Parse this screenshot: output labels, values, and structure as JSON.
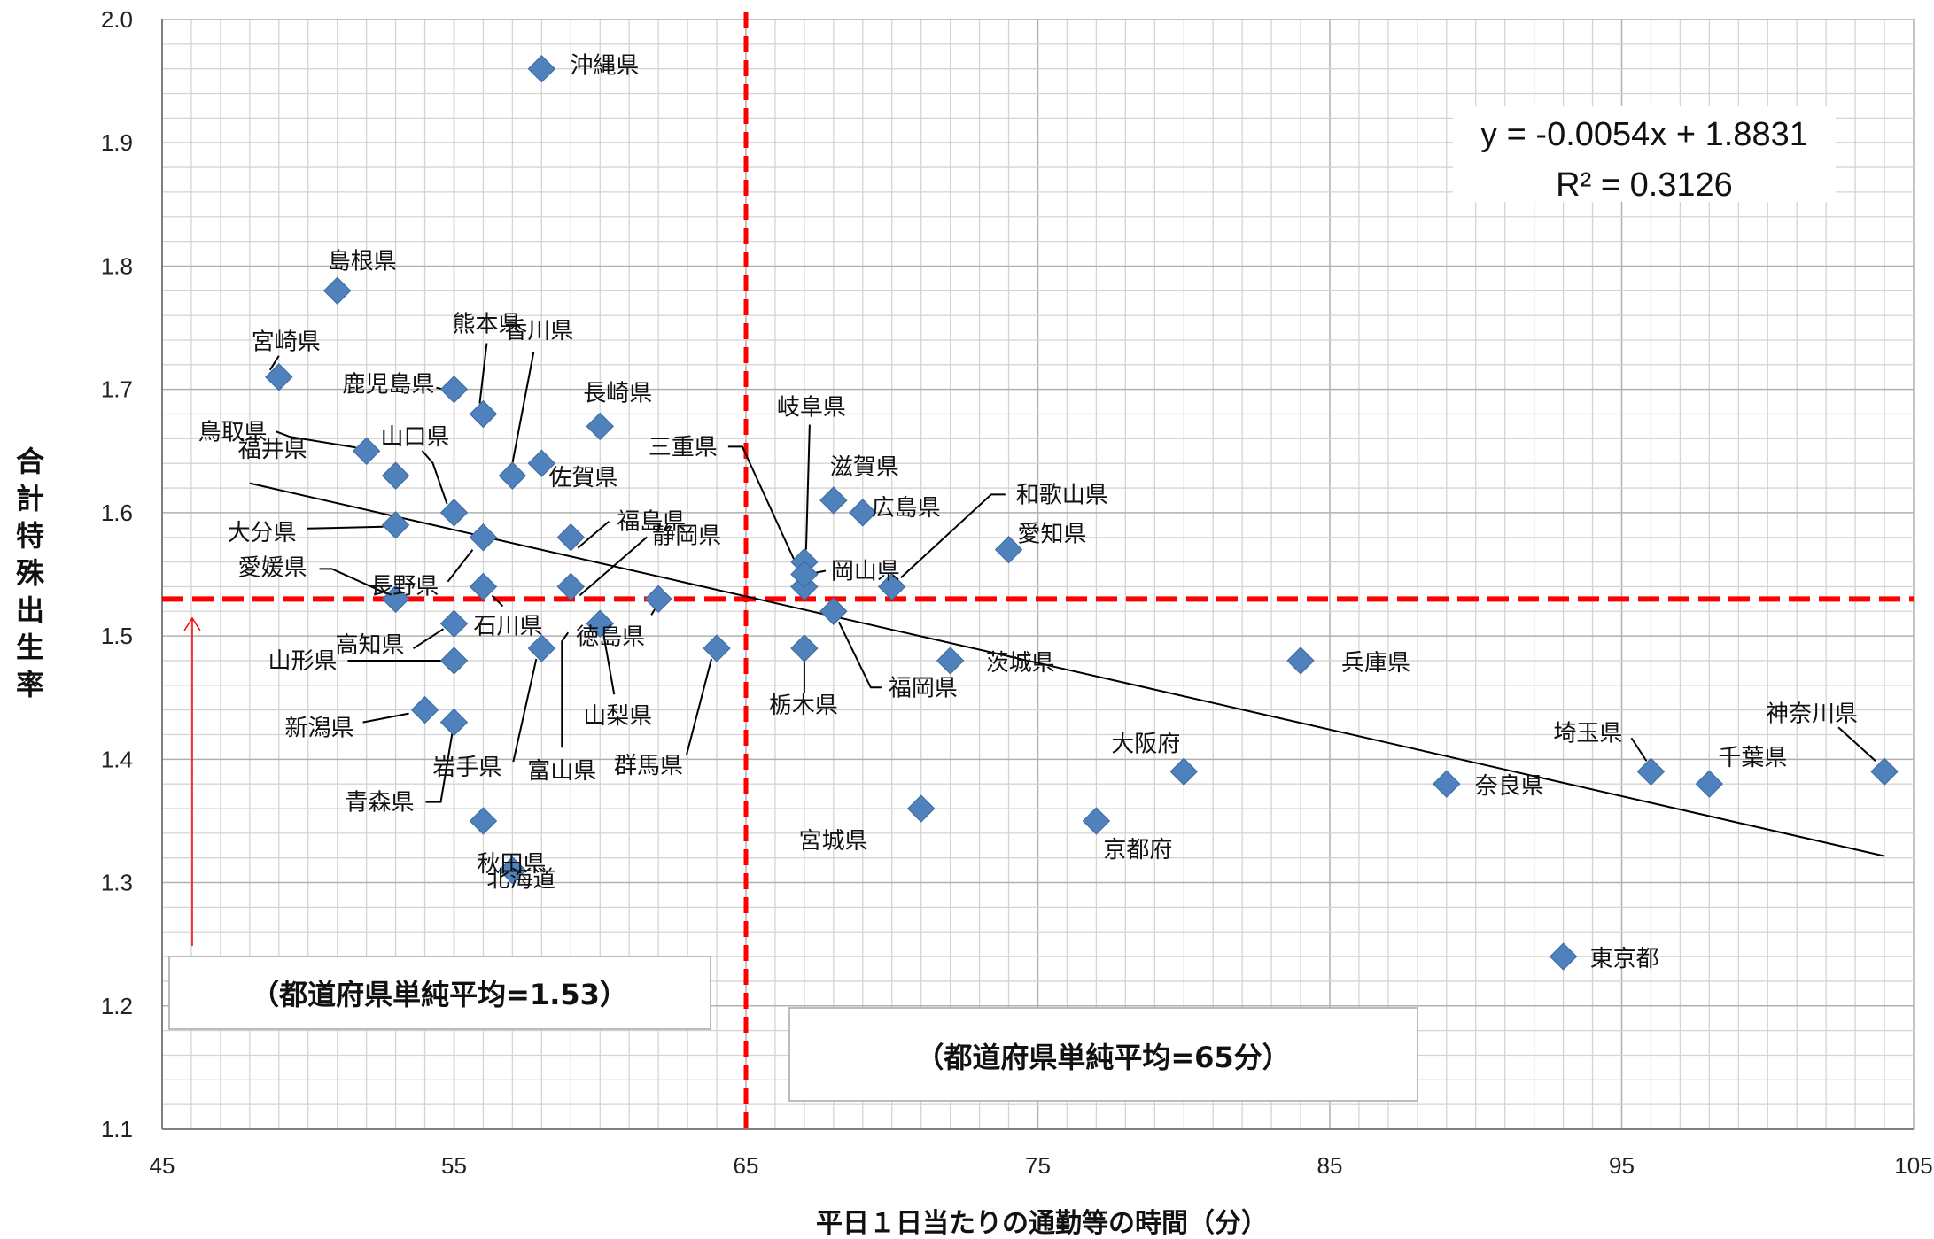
{
  "chart_data": {
    "type": "scatter",
    "xlabel": "平日１日当たりの通勤等の時間（分）",
    "ylabel": "合計特殊出生率",
    "xlim": [
      45,
      105
    ],
    "ylim": [
      1.1,
      2.0
    ],
    "x_ticks": [
      "45",
      "55",
      "65",
      "75",
      "85",
      "95",
      "105"
    ],
    "y_ticks": [
      "1.1",
      "1.2",
      "1.3",
      "1.4",
      "1.5",
      "1.6",
      "1.7",
      "1.8",
      "1.9",
      "2.0"
    ],
    "marker_color": "#4f81bd",
    "points": [
      {
        "label": "北海道",
        "x": 57,
        "y": 1.31
      },
      {
        "label": "青森県",
        "x": 55,
        "y": 1.43
      },
      {
        "label": "岩手県",
        "x": 58,
        "y": 1.49
      },
      {
        "label": "宮城県",
        "x": 71,
        "y": 1.36
      },
      {
        "label": "秋田県",
        "x": 56,
        "y": 1.35
      },
      {
        "label": "山形県",
        "x": 55,
        "y": 1.48
      },
      {
        "label": "福島県",
        "x": 59,
        "y": 1.58
      },
      {
        "label": "茨城県",
        "x": 72,
        "y": 1.48
      },
      {
        "label": "栃木県",
        "x": 67,
        "y": 1.49
      },
      {
        "label": "群馬県",
        "x": 64,
        "y": 1.49
      },
      {
        "label": "埼玉県",
        "x": 96,
        "y": 1.39
      },
      {
        "label": "千葉県",
        "x": 98,
        "y": 1.38
      },
      {
        "label": "東京都",
        "x": 93,
        "y": 1.24
      },
      {
        "label": "神奈川県",
        "x": 104,
        "y": 1.39
      },
      {
        "label": "新潟県",
        "x": 54,
        "y": 1.44
      },
      {
        "label": "富山県",
        "x": 60,
        "y": 1.51
      },
      {
        "label": "石川県",
        "x": 56,
        "y": 1.54
      },
      {
        "label": "福井県",
        "x": 53,
        "y": 1.63
      },
      {
        "label": "山梨県",
        "x": 60,
        "y": 1.51
      },
      {
        "label": "長野県",
        "x": 56,
        "y": 1.58
      },
      {
        "label": "岐阜県",
        "x": 67,
        "y": 1.56
      },
      {
        "label": "静岡県",
        "x": 59,
        "y": 1.54
      },
      {
        "label": "愛知県",
        "x": 74,
        "y": 1.57
      },
      {
        "label": "三重県",
        "x": 67,
        "y": 1.54
      },
      {
        "label": "滋賀県",
        "x": 68,
        "y": 1.61
      },
      {
        "label": "京都府",
        "x": 77,
        "y": 1.35
      },
      {
        "label": "大阪府",
        "x": 80,
        "y": 1.39
      },
      {
        "label": "兵庫県",
        "x": 84,
        "y": 1.48
      },
      {
        "label": "奈良県",
        "x": 89,
        "y": 1.38
      },
      {
        "label": "和歌山県",
        "x": 70,
        "y": 1.54
      },
      {
        "label": "鳥取県",
        "x": 52,
        "y": 1.65
      },
      {
        "label": "島根県",
        "x": 51,
        "y": 1.78
      },
      {
        "label": "岡山県",
        "x": 67,
        "y": 1.55
      },
      {
        "label": "広島県",
        "x": 69,
        "y": 1.6
      },
      {
        "label": "山口県",
        "x": 55,
        "y": 1.6
      },
      {
        "label": "徳島県",
        "x": 62,
        "y": 1.53
      },
      {
        "label": "香川県",
        "x": 57,
        "y": 1.63
      },
      {
        "label": "愛媛県",
        "x": 53,
        "y": 1.53
      },
      {
        "label": "高知県",
        "x": 55,
        "y": 1.51
      },
      {
        "label": "福岡県",
        "x": 68,
        "y": 1.52
      },
      {
        "label": "佐賀県",
        "x": 58,
        "y": 1.64
      },
      {
        "label": "長崎県",
        "x": 60,
        "y": 1.67
      },
      {
        "label": "熊本県",
        "x": 56,
        "y": 1.68
      },
      {
        "label": "大分県",
        "x": 53,
        "y": 1.59
      },
      {
        "label": "宮崎県",
        "x": 49,
        "y": 1.71
      },
      {
        "label": "鹿児島県",
        "x": 55,
        "y": 1.7
      },
      {
        "label": "沖縄県",
        "x": 58,
        "y": 1.96
      }
    ],
    "trendline": {
      "equation": "y = -0.0054x + 1.8831",
      "r_squared": "R² = 0.3126",
      "slope": -0.0054,
      "intercept": 1.8831,
      "x_range": [
        48,
        104
      ]
    },
    "reference_lines": [
      {
        "orientation": "vertical",
        "value": 65,
        "color": "#ff0000",
        "style": "dashed"
      },
      {
        "orientation": "horizontal",
        "value": 1.53,
        "color": "#ff0000",
        "style": "dashed"
      }
    ],
    "annotations": [
      {
        "text": "（都道府県単純平均=1.53）"
      },
      {
        "text": "（都道府県単純平均=65分）"
      }
    ]
  }
}
